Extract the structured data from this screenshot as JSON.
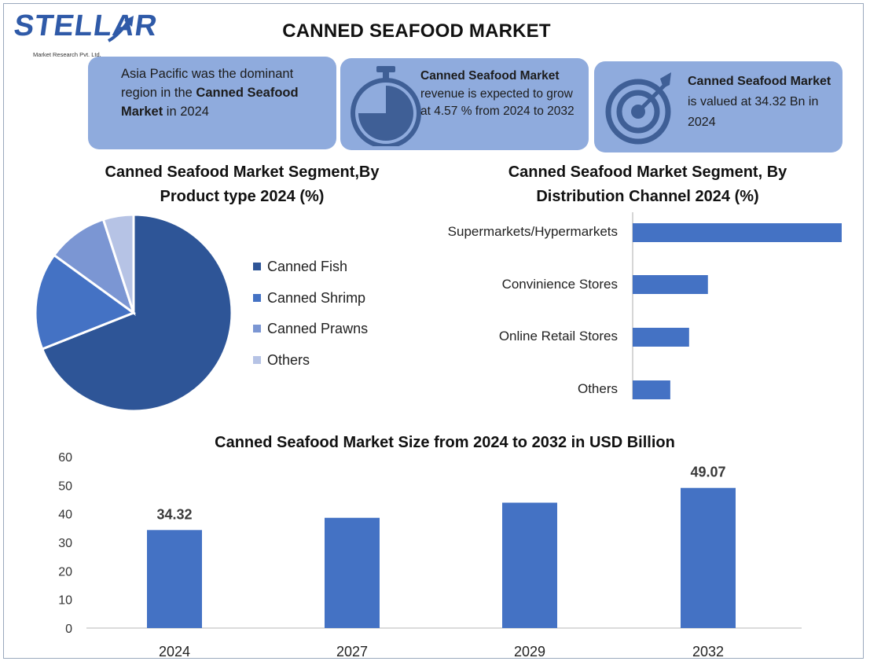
{
  "header": {
    "logo_text": "STELLAR",
    "logo_sub": "Market Research Pvt. Ltd.",
    "title": "CANNED SEAFOOD MARKET"
  },
  "info_cards": [
    {
      "text_pre": "Asia Pacific was the dominant region in the ",
      "bold": "Canned Seafood Market",
      "text_post": " in 2024",
      "icon": ""
    },
    {
      "bold": "Canned Seafood Market",
      "text_post": " revenue is expected to grow at 4.57 % from 2024 to 2032",
      "icon": "stopwatch-icon"
    },
    {
      "bold": "Canned Seafood Market",
      "text_post": " is valued at 34.32 Bn in 2024",
      "icon": "target-icon"
    }
  ],
  "colors": {
    "card_bg": "#8fabdd",
    "canned_fish": "#2e5597",
    "canned_shrimp": "#4472c4",
    "canned_prawns": "#7b96d3",
    "others": "#b6c3e5",
    "bar": "#4472c4"
  },
  "chart_data": [
    {
      "type": "pie",
      "title": "Canned Seafood Market Segment,By Product type 2024 (%)",
      "categories": [
        "Canned Fish",
        "Canned Shrimp",
        "Canned Prawns",
        "Others"
      ],
      "values": [
        69,
        16,
        10,
        5
      ]
    },
    {
      "type": "bar",
      "orientation": "horizontal",
      "title": "Canned Seafood Market Segment, By Distribution Channel 2024 (%)",
      "categories": [
        "Supermarkets/Hypermarkets",
        "Convinience Stores",
        "Online Retail Stores",
        "Others"
      ],
      "values": [
        50,
        18,
        13.5,
        9
      ],
      "xlim": [
        0,
        50
      ]
    },
    {
      "type": "bar",
      "title": "Canned Seafood Market Size from 2024 to 2032 in USD Billion",
      "categories": [
        "2024",
        "2027",
        "2029",
        "2032"
      ],
      "values": [
        34.32,
        38.6,
        43.9,
        49.07
      ],
      "data_labels": [
        "34.32",
        "",
        "",
        "49.07"
      ],
      "ylim": [
        0,
        60
      ],
      "yticks": [
        0,
        10,
        20,
        30,
        40,
        50,
        60
      ],
      "grid": false
    }
  ]
}
